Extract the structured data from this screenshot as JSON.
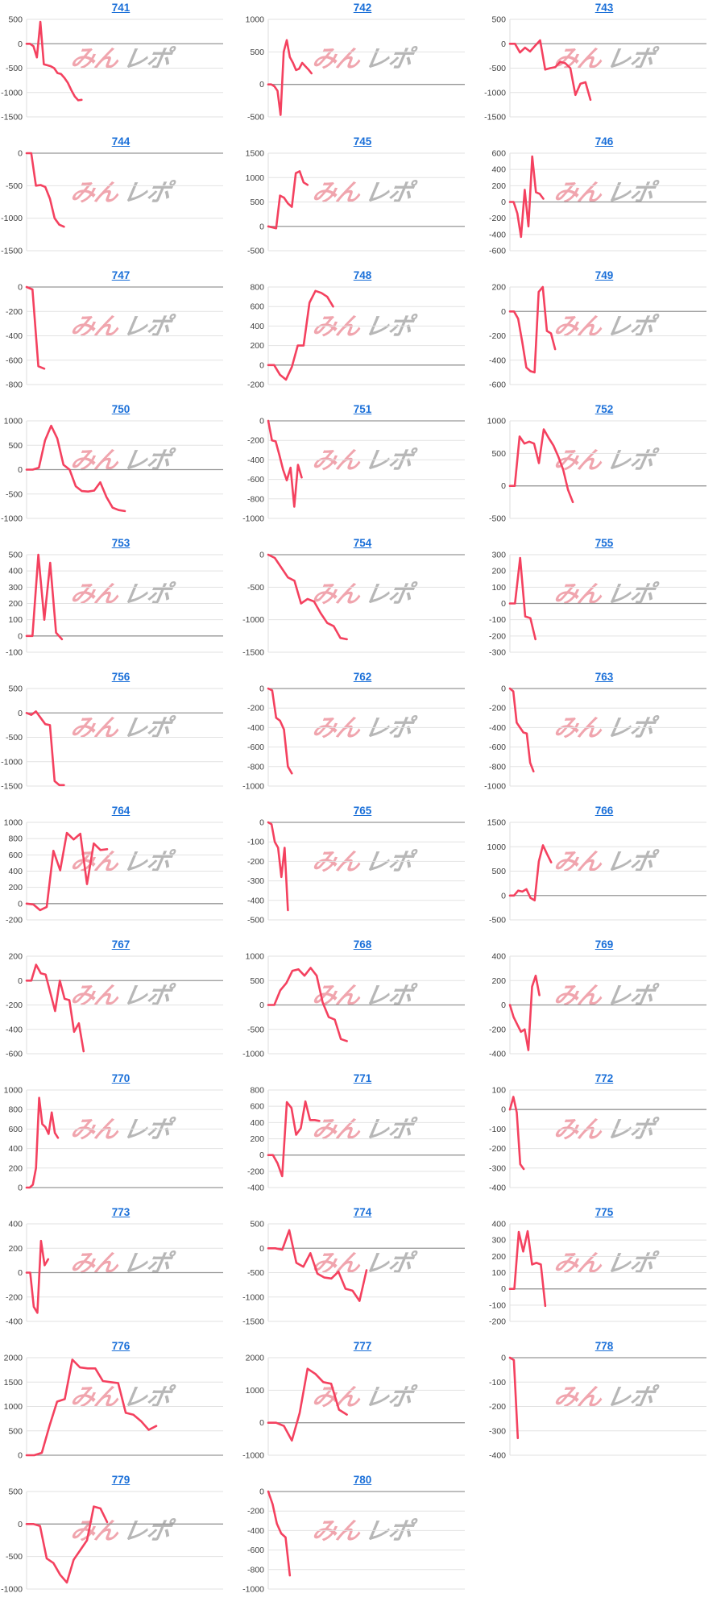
{
  "page": {
    "background": "#ffffff"
  },
  "watermark": {
    "part1": "みん",
    "part2": "レポ",
    "color1": "#ee96a0",
    "color2": "#b0b0b0"
  },
  "colors": {
    "line": "#f4415f",
    "grid": "#e2e2e2",
    "zero_line": "#969696",
    "axis_line": "#dcdcdc",
    "tick_label": "#3f3f3f",
    "title_link": "#1a6fd8"
  },
  "chart_data": [
    {
      "type": "line",
      "title": "741",
      "yticks": [
        500,
        0,
        -500,
        -1000,
        -1500
      ],
      "values": [
        0,
        0,
        -50,
        -280,
        450,
        -420,
        -440,
        -460,
        -500,
        -600,
        -620,
        -700,
        -800,
        -950,
        -1080,
        -1160,
        -1150
      ],
      "x_fill": 0.28
    },
    {
      "type": "line",
      "title": "742",
      "yticks": [
        1000,
        500,
        0,
        -500
      ],
      "values": [
        0,
        0,
        -30,
        -100,
        -470,
        500,
        680,
        420,
        330,
        220,
        240,
        330,
        280,
        230,
        170
      ],
      "x_fill": 0.22
    },
    {
      "type": "line",
      "title": "743",
      "yticks": [
        500,
        0,
        -500,
        -1000,
        -1500
      ],
      "values": [
        0,
        0,
        -180,
        -80,
        -160,
        -40,
        70,
        -530,
        -500,
        -480,
        -370,
        -400,
        -500,
        -1050,
        -820,
        -790,
        -1150
      ],
      "x_fill": 0.41
    },
    {
      "type": "line",
      "title": "744",
      "yticks": [
        0,
        -500,
        -1000,
        -1500
      ],
      "values": [
        0,
        0,
        -500,
        -490,
        -520,
        -700,
        -1000,
        -1100,
        -1130
      ],
      "x_fill": 0.19
    },
    {
      "type": "line",
      "title": "745",
      "yticks": [
        1500,
        1000,
        500,
        0,
        -500
      ],
      "values": [
        0,
        -20,
        -40,
        630,
        590,
        470,
        400,
        1090,
        1130,
        900,
        850
      ],
      "x_fill": 0.2
    },
    {
      "type": "line",
      "title": "746",
      "yticks": [
        600,
        400,
        200,
        0,
        -200,
        -400,
        -600
      ],
      "values": [
        0,
        0,
        -140,
        -430,
        150,
        -300,
        560,
        120,
        100,
        40
      ],
      "x_fill": 0.17
    },
    {
      "type": "line",
      "title": "747",
      "yticks": [
        0,
        -200,
        -400,
        -600,
        -800
      ],
      "values": [
        0,
        -20,
        -650,
        -670
      ],
      "x_fill": 0.09
    },
    {
      "type": "line",
      "title": "748",
      "yticks": [
        800,
        600,
        400,
        200,
        0,
        -200
      ],
      "values": [
        0,
        0,
        -100,
        -150,
        -20,
        200,
        200,
        640,
        760,
        740,
        700,
        600
      ],
      "x_fill": 0.33
    },
    {
      "type": "line",
      "title": "749",
      "yticks": [
        200,
        0,
        -200,
        -400,
        -600
      ],
      "values": [
        0,
        0,
        -60,
        -250,
        -460,
        -490,
        -500,
        160,
        200,
        -160,
        -180,
        -310
      ],
      "x_fill": 0.23
    },
    {
      "type": "line",
      "title": "750",
      "yticks": [
        1000,
        500,
        0,
        -500,
        -1000
      ],
      "values": [
        0,
        0,
        40,
        600,
        900,
        640,
        100,
        0,
        -340,
        -440,
        -450,
        -430,
        -260,
        -560,
        -780,
        -830,
        -850
      ],
      "x_fill": 0.5
    },
    {
      "type": "line",
      "title": "751",
      "yticks": [
        0,
        -200,
        -400,
        -600,
        -800,
        -1000
      ],
      "values": [
        0,
        -200,
        -210,
        -350,
        -500,
        -610,
        -480,
        -880,
        -450,
        -580
      ],
      "x_fill": 0.17
    },
    {
      "type": "line",
      "title": "752",
      "yticks": [
        1000,
        500,
        0,
        -500
      ],
      "values": [
        0,
        0,
        760,
        650,
        680,
        650,
        350,
        870,
        740,
        620,
        450,
        250,
        -60,
        -250
      ],
      "x_fill": 0.32
    },
    {
      "type": "line",
      "title": "753",
      "yticks": [
        500,
        400,
        300,
        200,
        100,
        0,
        -100
      ],
      "values": [
        0,
        0,
        500,
        100,
        450,
        20,
        -20
      ],
      "x_fill": 0.18
    },
    {
      "type": "line",
      "title": "754",
      "yticks": [
        0,
        -500,
        -1000,
        -1500
      ],
      "values": [
        0,
        -50,
        -200,
        -350,
        -400,
        -750,
        -680,
        -720,
        -900,
        -1050,
        -1100,
        -1280,
        -1300
      ],
      "x_fill": 0.4
    },
    {
      "type": "line",
      "title": "755",
      "yticks": [
        300,
        200,
        100,
        0,
        -100,
        -200,
        -300
      ],
      "values": [
        0,
        0,
        280,
        -80,
        -90,
        -220
      ],
      "x_fill": 0.13
    },
    {
      "type": "line",
      "title": "756",
      "yticks": [
        500,
        0,
        -500,
        -1000,
        -1500
      ],
      "values": [
        0,
        -40,
        30,
        -100,
        -230,
        -250,
        -1400,
        -1480,
        -1480
      ],
      "x_fill": 0.19
    },
    {
      "type": "line",
      "title": "762",
      "yticks": [
        0,
        -200,
        -400,
        -600,
        -800,
        -1000
      ],
      "values": [
        0,
        -20,
        -300,
        -330,
        -420,
        -800,
        -870
      ],
      "x_fill": 0.12
    },
    {
      "type": "line",
      "title": "763",
      "yticks": [
        0,
        -200,
        -400,
        -600,
        -800,
        -1000
      ],
      "values": [
        0,
        -30,
        -350,
        -400,
        -450,
        -460,
        -760,
        -850
      ],
      "x_fill": 0.12
    },
    {
      "type": "line",
      "title": "764",
      "yticks": [
        1000,
        800,
        600,
        400,
        200,
        0,
        -200
      ],
      "values": [
        0,
        -10,
        -80,
        -40,
        650,
        410,
        870,
        790,
        860,
        240,
        740,
        660,
        670
      ],
      "x_fill": 0.41
    },
    {
      "type": "line",
      "title": "765",
      "yticks": [
        0,
        -100,
        -200,
        -300,
        -400,
        -500
      ],
      "values": [
        0,
        -10,
        -100,
        -130,
        -280,
        -130,
        -450
      ],
      "x_fill": 0.1
    },
    {
      "type": "line",
      "title": "766",
      "yticks": [
        1500,
        1000,
        500,
        0,
        -500
      ],
      "values": [
        0,
        0,
        100,
        80,
        130,
        -50,
        -100,
        700,
        1030,
        850,
        680
      ],
      "x_fill": 0.21
    },
    {
      "type": "line",
      "title": "767",
      "yticks": [
        200,
        0,
        -200,
        -400,
        -600
      ],
      "values": [
        0,
        0,
        130,
        60,
        50,
        -100,
        -250,
        0,
        -150,
        -160,
        -420,
        -350,
        -580
      ],
      "x_fill": 0.29
    },
    {
      "type": "line",
      "title": "768",
      "yticks": [
        1000,
        500,
        0,
        -500,
        -1000
      ],
      "values": [
        0,
        0,
        300,
        450,
        700,
        730,
        600,
        760,
        600,
        50,
        -250,
        -300,
        -700,
        -740
      ],
      "x_fill": 0.4
    },
    {
      "type": "line",
      "title": "769",
      "yticks": [
        400,
        200,
        0,
        -200,
        -400
      ],
      "values": [
        0,
        -100,
        -160,
        -220,
        -200,
        -370,
        150,
        240,
        80
      ],
      "x_fill": 0.15
    },
    {
      "type": "line",
      "title": "770",
      "yticks": [
        1000,
        800,
        600,
        400,
        200,
        0
      ],
      "values": [
        0,
        0,
        30,
        200,
        920,
        650,
        620,
        550,
        770,
        560,
        510
      ],
      "x_fill": 0.16
    },
    {
      "type": "line",
      "title": "771",
      "yticks": [
        800,
        600,
        400,
        200,
        0,
        -200,
        -400
      ],
      "values": [
        0,
        0,
        -100,
        -260,
        650,
        580,
        250,
        330,
        660,
        430,
        430,
        420
      ],
      "x_fill": 0.26
    },
    {
      "type": "line",
      "title": "772",
      "yticks": [
        100,
        0,
        -100,
        -200,
        -300,
        -400
      ],
      "values": [
        0,
        65,
        -15,
        -280,
        -305
      ],
      "x_fill": 0.07
    },
    {
      "type": "line",
      "title": "773",
      "yticks": [
        400,
        200,
        0,
        -200,
        -400
      ],
      "values": [
        0,
        0,
        -280,
        -330,
        260,
        60,
        110
      ],
      "x_fill": 0.11
    },
    {
      "type": "line",
      "title": "774",
      "yticks": [
        500,
        0,
        -500,
        -1000,
        -1500
      ],
      "values": [
        0,
        0,
        -30,
        370,
        -300,
        -380,
        -100,
        -520,
        -600,
        -620,
        -480,
        -830,
        -870,
        -1080,
        -450
      ],
      "x_fill": 0.5
    },
    {
      "type": "line",
      "title": "775",
      "yticks": [
        400,
        300,
        200,
        100,
        0,
        -100,
        -200
      ],
      "values": [
        0,
        0,
        350,
        230,
        355,
        150,
        160,
        150,
        -105
      ],
      "x_fill": 0.18
    },
    {
      "type": "line",
      "title": "776",
      "yticks": [
        2000,
        1500,
        1000,
        500,
        0
      ],
      "values": [
        0,
        0,
        50,
        600,
        1100,
        1150,
        1960,
        1800,
        1780,
        1780,
        1520,
        1500,
        1480,
        870,
        830,
        700,
        520,
        600
      ],
      "x_fill": 0.66
    },
    {
      "type": "line",
      "title": "777",
      "yticks": [
        2000,
        1000,
        0,
        -1000
      ],
      "values": [
        0,
        0,
        -100,
        -550,
        300,
        1660,
        1500,
        1250,
        1200,
        400,
        250
      ],
      "x_fill": 0.4
    },
    {
      "type": "line",
      "title": "778",
      "yticks": [
        0,
        -100,
        -200,
        -300,
        -400
      ],
      "values": [
        0,
        -10,
        -330
      ],
      "x_fill": 0.04
    },
    {
      "type": "line",
      "title": "779",
      "yticks": [
        500,
        0,
        -500,
        -1000
      ],
      "values": [
        0,
        0,
        -30,
        -530,
        -600,
        -780,
        -900,
        -550,
        -400,
        -250,
        270,
        240,
        30
      ],
      "x_fill": 0.41
    },
    {
      "type": "line",
      "title": "780",
      "yticks": [
        0,
        -200,
        -400,
        -600,
        -800,
        -1000
      ],
      "values": [
        0,
        -130,
        -330,
        -430,
        -470,
        -860
      ],
      "x_fill": 0.11
    }
  ]
}
